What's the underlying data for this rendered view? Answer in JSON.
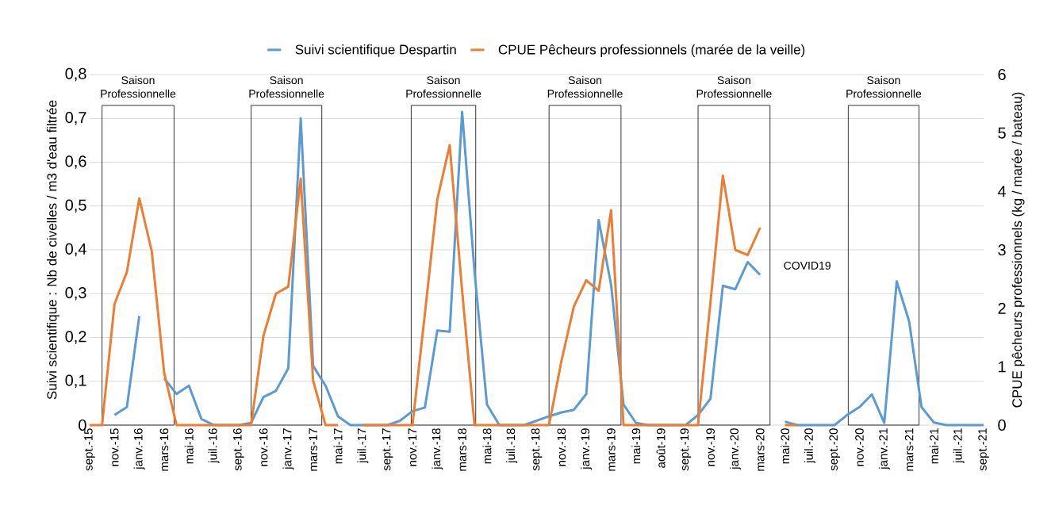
{
  "chart_data": {
    "type": "line",
    "categories": [
      "sept.-15",
      null,
      "nov.-15",
      null,
      "janv.-16",
      null,
      "mars-16",
      null,
      "mai-16",
      null,
      "juil.-16",
      null,
      "sept.-16",
      null,
      "nov.-16",
      null,
      "janv.-17",
      null,
      "mars-17",
      null,
      "mai-17",
      null,
      "juil.-17",
      null,
      "sept.-17",
      null,
      "nov.-17",
      null,
      "janv.-18",
      null,
      "mars-18",
      null,
      "mai-18",
      null,
      "juil.-18",
      null,
      "sept.-18",
      null,
      "nov.-18",
      null,
      "janv.-19",
      null,
      "mars-19",
      null,
      "mai-19",
      null,
      "août-19",
      null,
      "sept.-19",
      null,
      "nov.-19",
      null,
      "janv.-20",
      null,
      "mars-20",
      null,
      "mai-20",
      null,
      "juil.-20",
      null,
      "sept.-20",
      null,
      "nov.-20",
      null,
      "janv.-21",
      null,
      "mars-21",
      null,
      "mai-21",
      null,
      "juil.-21",
      null,
      "sept.-21"
    ],
    "series": [
      {
        "name": "Suivi scientifique Despartin",
        "color": "#5b9bd5",
        "values": [
          null,
          null,
          0.023,
          0.041,
          0.249,
          null,
          0.107,
          0.071,
          0.09,
          0.014,
          0,
          0,
          0,
          0.005,
          0.064,
          0.078,
          0.13,
          0.7,
          0.135,
          0.09,
          0.02,
          0,
          0,
          0,
          0,
          0.01,
          0.032,
          0.04,
          0.216,
          0.213,
          0.715,
          0.35,
          0.047,
          0,
          0,
          0,
          0.01,
          0.02,
          0.029,
          0.035,
          0.071,
          0.468,
          0.32,
          0.047,
          0.005,
          0,
          0,
          0,
          0,
          0.023,
          0.06,
          0.318,
          0.31,
          0.372,
          0.343,
          null,
          0.008,
          0,
          0,
          0,
          0,
          0.023,
          0.041,
          0.07,
          0.005,
          0.328,
          0.237,
          0.041,
          0.006,
          0,
          0,
          0,
          0
        ]
      },
      {
        "name": "CPUE Pêcheurs professionnels (marée de la veille)",
        "color": "#ed7d31",
        "axis": "y2",
        "values": [
          0,
          0,
          2.07,
          2.62,
          3.88,
          2.98,
          0.9,
          0,
          0,
          0,
          0,
          0,
          0,
          0,
          1.53,
          2.25,
          2.37,
          4.22,
          0.76,
          0,
          0,
          null,
          0,
          0,
          0,
          0,
          0,
          1.9,
          3.86,
          4.79,
          2.3,
          0,
          0,
          0,
          0,
          0,
          0,
          0,
          1.1,
          2.03,
          2.48,
          2.3,
          3.68,
          0,
          0,
          0,
          0,
          0,
          0,
          0,
          2.1,
          4.27,
          3.0,
          2.91,
          3.38,
          null,
          0,
          0,
          null,
          null,
          null,
          null,
          null,
          null,
          null,
          null,
          null,
          null,
          null,
          null,
          null,
          null,
          null
        ]
      }
    ],
    "ylabel": "Suivi scientifique : Nb de civelles / m3 d'eau filtrée",
    "y2label": "CPUE pêcheurs professionnels (kg / marée / bateau)",
    "ylim": [
      0,
      0.8
    ],
    "yticks": [
      0,
      {
        "value": 0.1,
        "label": "0,1"
      },
      {
        "value": 0.2,
        "label": "0,2"
      },
      {
        "value": 0.3,
        "label": "0,3"
      },
      {
        "value": 0.4,
        "label": "0,4"
      },
      {
        "value": 0.5,
        "label": "0,5"
      },
      {
        "value": 0.6,
        "label": "0,6"
      },
      {
        "value": 0.7,
        "label": "0,7"
      },
      {
        "value": 0.8,
        "label": "0,8"
      }
    ],
    "y2lim": [
      0,
      6
    ],
    "y2ticks": [
      0,
      1,
      2,
      3,
      4,
      5,
      6
    ],
    "annotations": [
      "Saison Professionnelle",
      "Saison Professionnelle",
      "Saison Professionnelle",
      "Saison Professionnelle",
      "Saison Professionnelle",
      "Saison Professionnelle",
      "COVID19"
    ],
    "grid": "y",
    "legend": "top",
    "marker": "none",
    "line_style": "solid"
  }
}
